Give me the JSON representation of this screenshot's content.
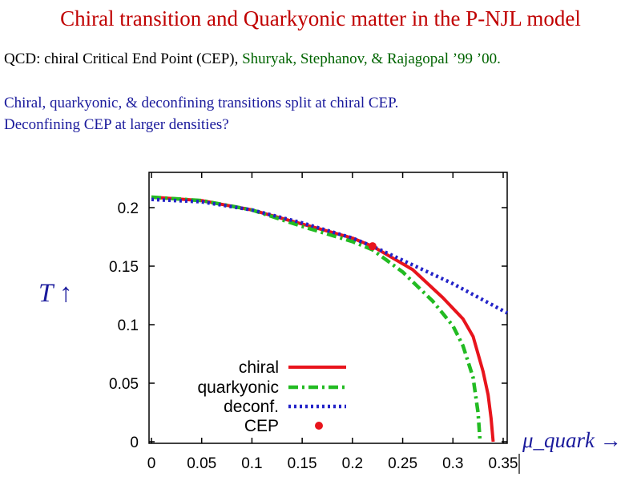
{
  "slide": {
    "title": "Chiral transition and Quarkyonic matter in the P-NJL model",
    "line1_prefix": "QCD: chiral Critical End Point (CEP),",
    "line1_refs": "Shuryak, Stephanov, & Rajagopal ’99 ’00.",
    "line2": "Chiral, quarkyonic, & deconfining transitions split at chiral CEP.",
    "line3": "Deconfining CEP at larger densities?"
  },
  "chart_data": {
    "type": "line",
    "title": "",
    "xlabel": "μ_quark →",
    "ylabel": "T ↑",
    "xlim": [
      0,
      0.36
    ],
    "ylim": [
      0,
      0.22
    ],
    "x_ticks": [
      0,
      0.05,
      0.1,
      0.15,
      0.2,
      0.25,
      0.3,
      0.35
    ],
    "x_tick_labels": [
      "0",
      "0.05",
      "0.1",
      "0.15",
      "0.2",
      "0.25",
      "0.3",
      "0.35"
    ],
    "y_ticks": [
      0,
      0.05,
      0.1,
      0.15,
      0.2
    ],
    "y_tick_labels": [
      "0",
      "0.05",
      "0.1",
      "0.15",
      "0.2"
    ],
    "legend_position": "bottom-left",
    "series": [
      {
        "name": "chiral",
        "color": "#e8141c",
        "dash": "solid",
        "points": [
          [
            0,
            0.209
          ],
          [
            0.05,
            0.206
          ],
          [
            0.1,
            0.198
          ],
          [
            0.15,
            0.186
          ],
          [
            0.2,
            0.174
          ],
          [
            0.22,
            0.167
          ],
          [
            0.26,
            0.147
          ],
          [
            0.29,
            0.123
          ],
          [
            0.31,
            0.105
          ],
          [
            0.32,
            0.09
          ],
          [
            0.33,
            0.06
          ],
          [
            0.335,
            0.04
          ],
          [
            0.338,
            0.02
          ],
          [
            0.34,
            0
          ]
        ]
      },
      {
        "name": "quarkyonic",
        "color": "#22bb22",
        "dash": "dashdot",
        "points": [
          [
            0,
            0.209
          ],
          [
            0.05,
            0.206
          ],
          [
            0.1,
            0.198
          ],
          [
            0.15,
            0.184
          ],
          [
            0.2,
            0.171
          ],
          [
            0.22,
            0.164
          ],
          [
            0.25,
            0.145
          ],
          [
            0.28,
            0.12
          ],
          [
            0.3,
            0.099
          ],
          [
            0.31,
            0.082
          ],
          [
            0.32,
            0.055
          ],
          [
            0.325,
            0.025
          ],
          [
            0.327,
            0
          ]
        ]
      },
      {
        "name": "deconf.",
        "color": "#2323c8",
        "dash": "dotted",
        "points": [
          [
            0,
            0.207
          ],
          [
            0.05,
            0.205
          ],
          [
            0.1,
            0.198
          ],
          [
            0.15,
            0.187
          ],
          [
            0.2,
            0.174
          ],
          [
            0.22,
            0.167
          ],
          [
            0.25,
            0.155
          ],
          [
            0.3,
            0.135
          ],
          [
            0.36,
            0.11
          ]
        ]
      }
    ],
    "cep": {
      "name": "CEP",
      "x": 0.22,
      "y": 0.167,
      "color": "#e8141c"
    }
  }
}
